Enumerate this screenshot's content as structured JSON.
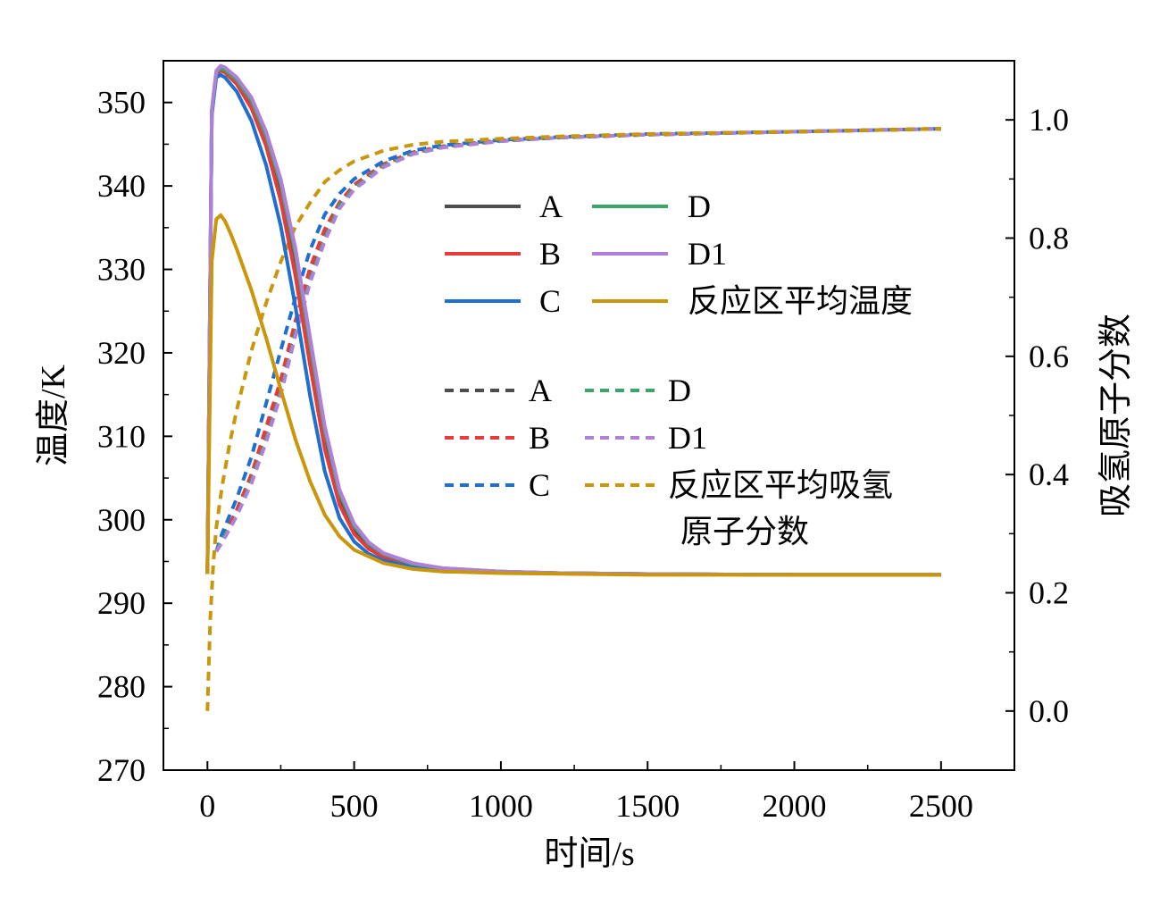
{
  "chart_data": {
    "type": "line",
    "xlabel": "时间/s",
    "ylabel_left": "温度/K",
    "ylabel_right": "吸氢原子分数",
    "xlim": [
      -150,
      2750
    ],
    "ylim_left": [
      270,
      355
    ],
    "ylim_right": [
      -0.1,
      1.1
    ],
    "xticks": [
      0,
      500,
      1000,
      1500,
      2000,
      2500
    ],
    "yticks_left": [
      270,
      280,
      290,
      300,
      310,
      320,
      330,
      340,
      350
    ],
    "yticks_right": [
      0.0,
      0.2,
      0.4,
      0.6,
      0.8,
      1.0
    ],
    "grid": false,
    "legend_position": "center-right",
    "temperature_series": [
      {
        "name": "A",
        "color": "#4d4d4d",
        "axis": "left",
        "style": "solid",
        "x": [
          0,
          15,
          30,
          45,
          60,
          100,
          150,
          200,
          250,
          300,
          350,
          400,
          450,
          500,
          550,
          600,
          700,
          800,
          1000,
          1200,
          1500,
          2000,
          2500
        ],
        "y": [
          293.5,
          349,
          353.5,
          354,
          353.8,
          352.5,
          349.8,
          345.5,
          339.2,
          330.5,
          319.8,
          309.5,
          302.5,
          298.8,
          296.8,
          295.7,
          294.6,
          294.1,
          293.8,
          293.6,
          293.5,
          293.4,
          293.4
        ]
      },
      {
        "name": "B",
        "color": "#e83a3a",
        "axis": "left",
        "style": "solid",
        "x": [
          0,
          15,
          30,
          45,
          60,
          100,
          150,
          200,
          250,
          300,
          350,
          400,
          450,
          500,
          550,
          600,
          700,
          800,
          1000,
          1200,
          1500,
          2000,
          2500
        ],
        "y": [
          293.5,
          349,
          353.3,
          353.8,
          353.6,
          352.2,
          349.3,
          344.8,
          338.2,
          329.2,
          318.5,
          308.5,
          301.8,
          298.3,
          296.5,
          295.5,
          294.5,
          294.0,
          293.7,
          293.6,
          293.5,
          293.4,
          293.4
        ]
      },
      {
        "name": "C",
        "color": "#1f6fd1",
        "axis": "left",
        "style": "solid",
        "x": [
          0,
          15,
          30,
          45,
          60,
          100,
          150,
          200,
          250,
          300,
          350,
          400,
          450,
          500,
          550,
          600,
          700,
          800,
          1000,
          1200,
          1500,
          2000,
          2500
        ],
        "y": [
          293.5,
          348.5,
          353,
          353.3,
          353,
          351.3,
          347.8,
          342.5,
          335.2,
          325.5,
          314.8,
          305.8,
          300.2,
          297.4,
          295.9,
          295.1,
          294.3,
          293.9,
          293.7,
          293.6,
          293.5,
          293.4,
          293.4
        ]
      },
      {
        "name": "D",
        "color": "#3aa66a",
        "axis": "left",
        "style": "solid",
        "x": [
          0,
          15,
          30,
          45,
          60,
          100,
          150,
          200,
          250,
          300,
          350,
          400,
          450,
          500,
          550,
          600,
          700,
          800,
          1000,
          1200,
          1500,
          2000,
          2500
        ],
        "y": [
          293.5,
          349,
          353.6,
          354.1,
          353.9,
          352.7,
          350.2,
          346.0,
          340.2,
          331.8,
          321.0,
          310.6,
          303.2,
          299.2,
          297.1,
          295.9,
          294.7,
          294.2,
          293.8,
          293.6,
          293.5,
          293.4,
          293.4
        ]
      },
      {
        "name": "D1",
        "color": "#b07fd9",
        "axis": "left",
        "style": "solid",
        "x": [
          0,
          15,
          30,
          45,
          60,
          100,
          150,
          200,
          250,
          300,
          350,
          400,
          450,
          500,
          550,
          600,
          700,
          800,
          1000,
          1200,
          1500,
          2000,
          2500
        ],
        "y": [
          293.5,
          349.2,
          353.8,
          354.4,
          354.2,
          353.0,
          350.6,
          346.5,
          340.8,
          332.5,
          321.8,
          311.2,
          303.6,
          299.5,
          297.3,
          296.0,
          294.8,
          294.2,
          293.8,
          293.6,
          293.5,
          293.4,
          293.4
        ]
      },
      {
        "name": "反应区平均温度",
        "color": "#c9960c",
        "axis": "left",
        "style": "solid",
        "x": [
          0,
          15,
          30,
          45,
          60,
          80,
          100,
          150,
          200,
          250,
          300,
          350,
          400,
          450,
          500,
          600,
          700,
          800,
          1000,
          1500,
          2000,
          2500
        ],
        "y": [
          293.5,
          331,
          336,
          336.5,
          335.8,
          334.2,
          332.4,
          327.5,
          321.8,
          315.6,
          309.6,
          304.6,
          300.6,
          298.0,
          296.4,
          294.8,
          294.1,
          293.8,
          293.6,
          293.4,
          293.4,
          293.4
        ]
      }
    ],
    "fraction_series": [
      {
        "name": "A",
        "color": "#4d4d4d",
        "axis": "right",
        "style": "dashed",
        "x": [
          30,
          50,
          100,
          150,
          200,
          250,
          300,
          350,
          400,
          450,
          500,
          600,
          700,
          800,
          1000,
          1200,
          1500,
          2000,
          2500
        ],
        "y": [
          0.27,
          0.29,
          0.34,
          0.4,
          0.47,
          0.55,
          0.65,
          0.74,
          0.81,
          0.86,
          0.89,
          0.925,
          0.945,
          0.955,
          0.965,
          0.97,
          0.975,
          0.98,
          0.985
        ]
      },
      {
        "name": "B",
        "color": "#e83a3a",
        "axis": "right",
        "style": "dashed",
        "x": [
          30,
          50,
          100,
          150,
          200,
          250,
          300,
          350,
          400,
          450,
          500,
          600,
          700,
          800,
          1000,
          1200,
          1500,
          2000,
          2500
        ],
        "y": [
          0.27,
          0.29,
          0.34,
          0.4,
          0.48,
          0.56,
          0.66,
          0.75,
          0.815,
          0.86,
          0.89,
          0.925,
          0.945,
          0.955,
          0.965,
          0.97,
          0.975,
          0.98,
          0.985
        ]
      },
      {
        "name": "C",
        "color": "#1f6fd1",
        "axis": "right",
        "style": "dashed",
        "x": [
          30,
          50,
          100,
          150,
          200,
          250,
          300,
          350,
          400,
          450,
          500,
          600,
          700,
          800,
          1000,
          1200,
          1500,
          2000,
          2500
        ],
        "y": [
          0.27,
          0.3,
          0.36,
          0.43,
          0.52,
          0.61,
          0.7,
          0.78,
          0.84,
          0.875,
          0.9,
          0.93,
          0.948,
          0.957,
          0.966,
          0.971,
          0.976,
          0.98,
          0.985
        ]
      },
      {
        "name": "D",
        "color": "#3aa66a",
        "axis": "right",
        "style": "dashed",
        "x": [
          30,
          50,
          100,
          150,
          200,
          250,
          300,
          350,
          400,
          450,
          500,
          600,
          700,
          800,
          1000,
          1200,
          1500,
          2000,
          2500
        ],
        "y": [
          0.27,
          0.29,
          0.33,
          0.39,
          0.46,
          0.54,
          0.64,
          0.73,
          0.8,
          0.855,
          0.885,
          0.922,
          0.943,
          0.954,
          0.964,
          0.97,
          0.975,
          0.98,
          0.985
        ]
      },
      {
        "name": "D1",
        "color": "#b07fd9",
        "axis": "right",
        "style": "dashed",
        "x": [
          30,
          50,
          100,
          150,
          200,
          250,
          300,
          350,
          400,
          450,
          500,
          600,
          700,
          800,
          1000,
          1200,
          1500,
          2000,
          2500
        ],
        "y": [
          0.27,
          0.285,
          0.33,
          0.385,
          0.455,
          0.535,
          0.635,
          0.725,
          0.795,
          0.85,
          0.882,
          0.92,
          0.942,
          0.953,
          0.964,
          0.97,
          0.975,
          0.98,
          0.985
        ]
      },
      {
        "name": "反应区平均吸氢原子分数",
        "color": "#c9960c",
        "axis": "right",
        "style": "dashed",
        "x": [
          0,
          5,
          10,
          20,
          30,
          50,
          75,
          100,
          150,
          200,
          250,
          300,
          350,
          400,
          450,
          500,
          600,
          700,
          800,
          1000,
          1200,
          1500,
          2000,
          2500
        ],
        "y": [
          0.0,
          0.08,
          0.16,
          0.25,
          0.31,
          0.38,
          0.45,
          0.51,
          0.61,
          0.69,
          0.76,
          0.82,
          0.86,
          0.895,
          0.915,
          0.93,
          0.948,
          0.958,
          0.963,
          0.968,
          0.972,
          0.976,
          0.98,
          0.985
        ]
      }
    ],
    "legend_solid": [
      "A",
      "B",
      "C",
      "D",
      "D1",
      "反应区平均温度"
    ],
    "legend_dashed": [
      "A",
      "B",
      "C",
      "D",
      "D1",
      "反应区平均吸氢",
      "原子分数"
    ]
  }
}
